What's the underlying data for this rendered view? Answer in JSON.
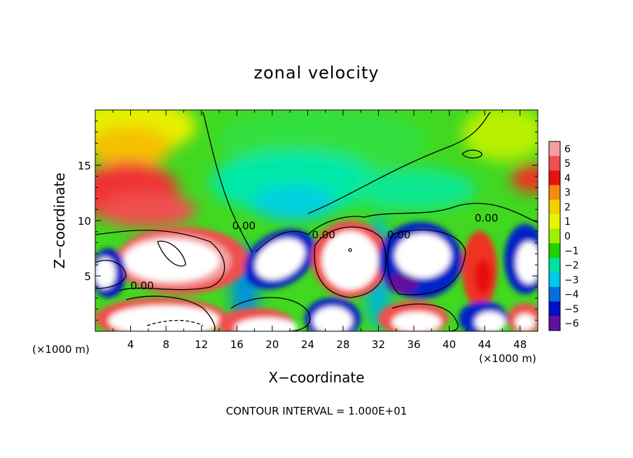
{
  "chart_data": {
    "type": "heatmap",
    "title": "zonal velocity",
    "xlabel": "X−coordinate",
    "ylabel": "Z−coordinate",
    "x_unit_left": "(×1000 m)",
    "x_unit_right": "(×1000 m)",
    "xlim": [
      0,
      50
    ],
    "ylim": [
      0,
      20
    ],
    "x_ticks": [
      4,
      8,
      12,
      16,
      20,
      24,
      28,
      32,
      36,
      40,
      44,
      48
    ],
    "y_ticks": [
      5,
      10,
      15
    ],
    "footer": "CONTOUR INTERVAL = 1.000E+01",
    "contour_labels": [
      {
        "text": "0.00",
        "x": 5.3,
        "y": 3.8
      },
      {
        "text": "0.00",
        "x": 16.8,
        "y": 9.2
      },
      {
        "text": "0.00",
        "x": 25.8,
        "y": 8.4
      },
      {
        "text": "0.00",
        "x": 34.3,
        "y": 8.4
      },
      {
        "text": "0.00",
        "x": 44.2,
        "y": 9.9
      }
    ],
    "colorbar": {
      "values": [
        6,
        5,
        4,
        3,
        2,
        1,
        0,
        -1,
        -2,
        -3,
        -4,
        -5,
        -6
      ],
      "labels": [
        "6",
        "5",
        "4",
        "3",
        "2",
        "1",
        "0",
        "−1",
        "−2",
        "−3",
        "−4",
        "−5",
        "−6"
      ],
      "colors": [
        "#f5a0a0",
        "#f05050",
        "#e81010",
        "#f58a10",
        "#f5d000",
        "#e8f500",
        "#a0ee00",
        "#20d000",
        "#00e0a0",
        "#00c8e8",
        "#0070e0",
        "#0010c8",
        "#6010a0"
      ]
    }
  }
}
